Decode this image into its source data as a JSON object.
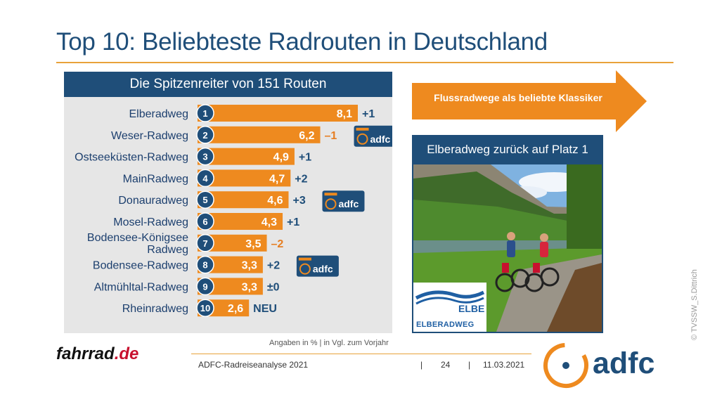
{
  "title": "Top 10: Beliebteste Radrouten in Deutschland",
  "chart_data": {
    "type": "bar",
    "title": "Die Spitzenreiter von 151 Routen",
    "categories": [
      "Elberadweg",
      "Weser-Radweg",
      "Ostseeküsten-Radweg",
      "MainRadweg",
      "Donauradweg",
      "Mosel-Radweg",
      "Bodensee-Königsee Radweg",
      "Bodensee-Radweg",
      "Altmühltal-Radweg",
      "Rheinradweg"
    ],
    "ranks": [
      "1",
      "2",
      "3",
      "4",
      "5",
      "6",
      "7",
      "8",
      "9",
      "10"
    ],
    "values": [
      8.1,
      6.2,
      4.9,
      4.7,
      4.6,
      4.3,
      3.5,
      3.3,
      3.3,
      2.6
    ],
    "value_labels": [
      "8,1",
      "6,2",
      "4,9",
      "4,7",
      "4,6",
      "4,3",
      "3,5",
      "3,3",
      "3,3",
      "2,6"
    ],
    "changes": [
      "+1",
      "–1",
      "+1",
      "+2",
      "+3",
      "+1",
      "–2",
      "+2",
      "±0",
      "NEU"
    ],
    "change_direction": [
      "up",
      "down",
      "up",
      "up",
      "up",
      "up",
      "down",
      "up",
      "same",
      "new"
    ],
    "badges": [
      {
        "rank": "2",
        "text": "adfc"
      },
      {
        "rank": "5",
        "text": "adfc"
      },
      {
        "rank": "8",
        "text": "adfc"
      }
    ],
    "unit_note": "Angaben in % | in Vgl. zum Vorjahr",
    "xlim": [
      0,
      8.1
    ],
    "colors": {
      "bar": "#ee8a1f",
      "rank_circle": "#1f4e79",
      "down": "#e67e22",
      "up": "#1f4e79"
    }
  },
  "flow_banner": "Flussradwege als beliebte Klassiker",
  "photo_caption": "Elberadweg zurück auf Platz 1",
  "elbe_logo": {
    "word": "ELBE",
    "text": "ELBERADWEG"
  },
  "footer": {
    "logo_main": "fahrrad",
    "logo_tld": ".de",
    "source": "ADFC-Radreiseanalyse 2021",
    "sep": "|",
    "page": "24",
    "date": "11.03.2021",
    "brand": "adfc"
  },
  "credit": "© TVSSW_S.Dittrich",
  "colors": {
    "accent": "#ee8a1f",
    "brand": "#1f4e79",
    "panel": "#e6e6e6"
  }
}
